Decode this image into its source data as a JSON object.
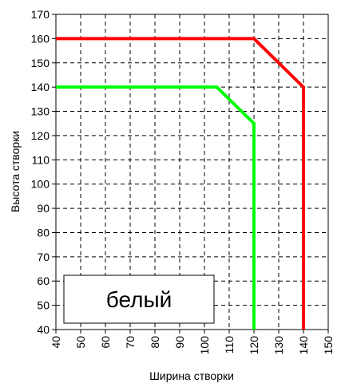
{
  "chart_data": {
    "type": "line",
    "xlabel": "Ширина створки",
    "ylabel": "Высота створки",
    "annotation": "белый",
    "series": [
      {
        "color": "#ff0000",
        "x": [
          40,
          120,
          140,
          140
        ],
        "values": [
          160,
          160,
          140,
          40
        ]
      },
      {
        "color": "#00ff00",
        "x": [
          40,
          105,
          120,
          120
        ],
        "values": [
          140,
          140,
          125,
          40
        ]
      }
    ],
    "xlim": [
      40,
      150
    ],
    "xticks": [
      40,
      50,
      60,
      70,
      80,
      90,
      100,
      110,
      120,
      130,
      140,
      150
    ],
    "ylim": [
      40,
      170
    ],
    "yticks": [
      40,
      50,
      60,
      70,
      80,
      90,
      100,
      110,
      120,
      130,
      140,
      150,
      160,
      170
    ],
    "grid": true
  }
}
